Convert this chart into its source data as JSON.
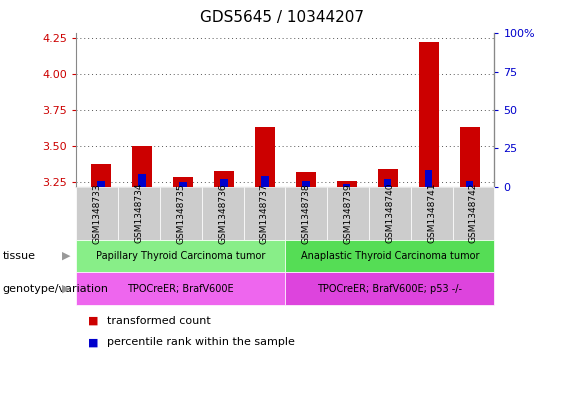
{
  "title": "GDS5645 / 10344207",
  "samples": [
    "GSM1348733",
    "GSM1348734",
    "GSM1348735",
    "GSM1348736",
    "GSM1348737",
    "GSM1348738",
    "GSM1348739",
    "GSM1348740",
    "GSM1348741",
    "GSM1348742"
  ],
  "transformed_count": [
    3.38,
    3.5,
    3.29,
    3.33,
    3.63,
    3.32,
    3.26,
    3.34,
    4.22,
    3.63
  ],
  "percentile_rank": [
    4,
    8,
    3,
    5,
    7,
    4,
    2,
    5,
    11,
    4
  ],
  "ylim_left": [
    3.22,
    4.28
  ],
  "ylim_right": [
    0,
    100
  ],
  "yticks_left": [
    3.25,
    3.5,
    3.75,
    4.0,
    4.25
  ],
  "yticks_right": [
    0,
    25,
    50,
    75,
    100
  ],
  "bar_color_red": "#cc0000",
  "bar_color_blue": "#0000cc",
  "bar_width": 0.5,
  "blue_bar_width": 0.18,
  "tissue_groups": [
    {
      "label": "Papillary Thyroid Carcinoma tumor",
      "start": 0,
      "end": 5,
      "color": "#88ee88"
    },
    {
      "label": "Anaplastic Thyroid Carcinoma tumor",
      "start": 5,
      "end": 10,
      "color": "#55dd55"
    }
  ],
  "genotype_groups": [
    {
      "label": "TPOCreER; BrafV600E",
      "start": 0,
      "end": 5,
      "color": "#ee66ee"
    },
    {
      "label": "TPOCreER; BrafV600E; p53 -/-",
      "start": 5,
      "end": 10,
      "color": "#dd44dd"
    }
  ],
  "tissue_label": "tissue",
  "genotype_label": "genotype/variation",
  "legend_items": [
    {
      "label": "transformed count",
      "color": "#cc0000"
    },
    {
      "label": "percentile rank within the sample",
      "color": "#0000cc"
    }
  ],
  "background_color": "#ffffff",
  "plot_bg_color": "#ffffff",
  "grid_color": "#555555",
  "tick_color_left": "#cc0000",
  "tick_color_right": "#0000cc",
  "xtick_bg_color": "#cccccc",
  "spine_color": "#888888"
}
